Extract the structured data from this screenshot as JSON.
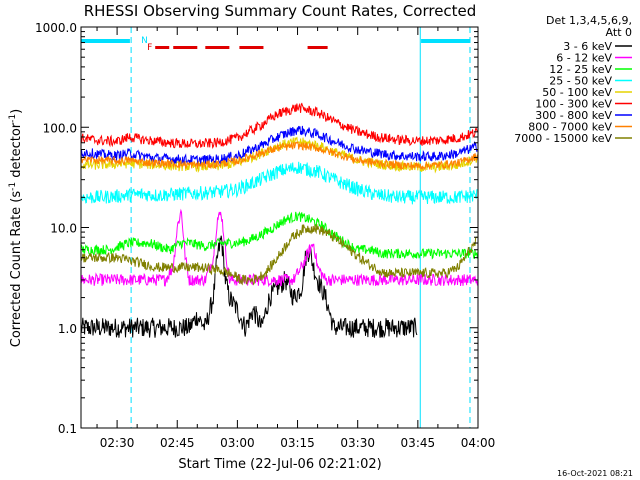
{
  "chart_data": {
    "type": "line",
    "title": "RHESSI Observing Summary Count Rates, Corrected",
    "xlabel": "Start Time (22-Jul-06 02:21:02)",
    "ylabel": "Corrected Count Rate (s",
    "ylabel_sup1": "-1",
    "ylabel_mid": " detector",
    "ylabel_sup2": "-1",
    "ylabel_end": ")",
    "yscale": "log",
    "ylim": [
      0.1,
      1000.0
    ],
    "xlim_min": [
      141,
      240
    ],
    "x_ticks": [
      {
        "min": 150,
        "label": "02:30"
      },
      {
        "min": 165,
        "label": "02:45"
      },
      {
        "min": 180,
        "label": "03:00"
      },
      {
        "min": 195,
        "label": "03:15"
      },
      {
        "min": 210,
        "label": "03:30"
      },
      {
        "min": 225,
        "label": "03:45"
      },
      {
        "min": 240,
        "label": "04:00"
      }
    ],
    "y_ticks": [
      {
        "v": 0.1,
        "label": "0.1"
      },
      {
        "v": 1.0,
        "label": "1.0"
      },
      {
        "v": 10.0,
        "label": "10.0"
      },
      {
        "v": 100.0,
        "label": "100.0"
      },
      {
        "v": 1000.0,
        "label": "1000.0"
      }
    ],
    "legend_header": [
      "Det 1,3,4,5,6,9,",
      "Att 0"
    ],
    "legend_placement": "right",
    "night_lines_min": [
      141.0,
      153.5,
      225.6,
      238.0
    ],
    "saa_bars_min": [
      [
        141.0,
        153.2
      ],
      [
        225.8,
        238.0
      ]
    ],
    "flag_labels": [
      {
        "text": "N",
        "min": 156.0,
        "color": "#00e0ff"
      },
      {
        "text": "F",
        "min": 157.5,
        "color": "#e00000"
      }
    ],
    "flare_segments_min": [
      [
        159.5,
        163.0
      ],
      [
        164.0,
        170.0
      ],
      [
        172.0,
        178.0
      ],
      [
        180.5,
        186.5
      ],
      [
        197.5,
        202.5
      ]
    ],
    "series": [
      {
        "name": "3 - 6 keV",
        "color": "#000000",
        "x": [
          141,
          148,
          151,
          152,
          153,
          156,
          158,
          160,
          163,
          166,
          168,
          170,
          172,
          174,
          175,
          176,
          177,
          178,
          180,
          182,
          184,
          186,
          188,
          190,
          192,
          194,
          196,
          197,
          198,
          199,
          200,
          202,
          204,
          206,
          208,
          210,
          212,
          214,
          216,
          218,
          220,
          222,
          224,
          225
        ],
        "y": [
          1.0,
          1.0,
          1.0,
          1.0,
          1.0,
          1.0,
          1.0,
          1.0,
          1.0,
          1.0,
          1.0,
          1.3,
          1.0,
          2.0,
          5.0,
          8.0,
          3.0,
          2.0,
          1.5,
          1.0,
          1.5,
          1.0,
          2.0,
          2.5,
          3.0,
          2.0,
          2.5,
          5.0,
          6.0,
          4.0,
          3.0,
          2.0,
          1.0,
          1.0,
          1.0,
          1.0,
          1.0,
          1.0,
          1.0,
          1.0,
          1.0,
          1.0,
          1.0,
          1.0
        ]
      },
      {
        "name": "6 - 12 keV",
        "color": "#ff00ff",
        "x": [
          141,
          145,
          150,
          153,
          156,
          159,
          162,
          164,
          165,
          166,
          167,
          168,
          170,
          172,
          174,
          175,
          176,
          177,
          178,
          180,
          182,
          184,
          186,
          188,
          190,
          192,
          194,
          196,
          198,
          199,
          200,
          202,
          204,
          206,
          208,
          210,
          212,
          214,
          216,
          218,
          220,
          222,
          224,
          226,
          228,
          230,
          232,
          234,
          236,
          238,
          240
        ],
        "y": [
          3.0,
          3.0,
          3.0,
          3.0,
          3.0,
          3.0,
          3.0,
          4.0,
          10.0,
          15.0,
          5.0,
          3.0,
          3.0,
          3.0,
          5.0,
          12.0,
          14.0,
          6.0,
          3.0,
          3.0,
          3.0,
          3.0,
          3.0,
          3.0,
          3.0,
          3.0,
          3.0,
          4.0,
          6.0,
          7.0,
          4.0,
          3.0,
          3.0,
          3.0,
          3.0,
          3.0,
          3.0,
          3.0,
          3.0,
          3.0,
          3.0,
          3.0,
          3.0,
          3.0,
          3.0,
          3.0,
          3.0,
          3.0,
          3.0,
          3.0,
          3.0
        ]
      },
      {
        "name": "12 - 25 keV",
        "color": "#00ff00",
        "x": [
          141,
          148,
          153,
          158,
          163,
          166,
          168,
          172,
          176,
          180,
          183,
          186,
          189,
          192,
          195,
          198,
          201,
          204,
          207,
          210,
          213,
          216,
          219,
          222,
          225,
          228,
          231,
          234,
          237,
          240
        ],
        "y": [
          6.0,
          6.0,
          7.0,
          7.0,
          6.0,
          7.0,
          7.0,
          6.5,
          7.0,
          7.0,
          7.5,
          8.5,
          10.0,
          12.0,
          13.0,
          12.0,
          10.5,
          8.5,
          7.0,
          6.0,
          6.0,
          5.5,
          5.5,
          5.5,
          5.5,
          5.5,
          5.5,
          5.5,
          5.5,
          5.5
        ]
      },
      {
        "name": "25 - 50 keV",
        "color": "#00ffff",
        "x": [
          141,
          145,
          150,
          153,
          156,
          160,
          165,
          170,
          175,
          180,
          185,
          190,
          195,
          200,
          205,
          210,
          215,
          220,
          225,
          230,
          235,
          240
        ],
        "y": [
          20.0,
          20.0,
          20.5,
          21.0,
          21.5,
          21.0,
          21.5,
          22.0,
          22.5,
          24.0,
          29.0,
          36.0,
          40.0,
          36.0,
          29.0,
          24.0,
          21.0,
          20.0,
          20.0,
          20.0,
          20.0,
          21.0
        ]
      },
      {
        "name": "50 - 100 keV",
        "color": "#e6d400",
        "x": [
          141,
          145,
          150,
          153,
          156,
          160,
          165,
          170,
          175,
          180,
          185,
          190,
          195,
          200,
          205,
          210,
          215,
          220,
          225,
          230,
          235,
          240
        ],
        "y": [
          42.0,
          42.0,
          43.0,
          43.5,
          43.0,
          42.0,
          41.0,
          40.5,
          41.0,
          44.0,
          53.0,
          65.0,
          72.0,
          66.0,
          55.0,
          47.0,
          43.0,
          41.0,
          40.0,
          40.0,
          42.0,
          50.0
        ]
      },
      {
        "name": "100 - 300 keV",
        "color": "#ff0000",
        "x": [
          141,
          145,
          150,
          153,
          156,
          160,
          165,
          170,
          175,
          180,
          185,
          190,
          195,
          200,
          205,
          210,
          215,
          220,
          225,
          230,
          235,
          240
        ],
        "y": [
          78.0,
          74.0,
          72.0,
          80.0,
          76.0,
          72.0,
          69.0,
          68.0,
          70.0,
          78.0,
          100.0,
          135.0,
          158.0,
          140.0,
          110.0,
          90.0,
          80.0,
          75.0,
          73.0,
          74.0,
          78.0,
          90.0
        ]
      },
      {
        "name": "300 - 800 keV",
        "color": "#0000ff",
        "x": [
          141,
          145,
          150,
          153,
          156,
          160,
          165,
          170,
          175,
          180,
          185,
          190,
          195,
          200,
          205,
          210,
          215,
          220,
          225,
          230,
          235,
          240
        ],
        "y": [
          57.0,
          54.0,
          52.0,
          55.0,
          52.0,
          49.0,
          48.0,
          47.0,
          48.0,
          52.0,
          63.0,
          80.0,
          95.0,
          85.0,
          70.0,
          60.0,
          55.0,
          52.0,
          51.0,
          51.0,
          55.0,
          65.0
        ]
      },
      {
        "name": "800 - 7000 keV",
        "color": "#ff8000",
        "x": [
          141,
          145,
          150,
          153,
          156,
          160,
          165,
          170,
          175,
          180,
          185,
          190,
          195,
          200,
          205,
          210,
          215,
          220,
          225,
          230,
          235,
          240
        ],
        "y": [
          48.0,
          47.0,
          46.0,
          47.0,
          45.0,
          44.0,
          43.0,
          42.0,
          43.0,
          46.0,
          54.0,
          62.0,
          66.0,
          62.0,
          54.0,
          47.0,
          44.0,
          42.0,
          41.0,
          42.0,
          44.0,
          52.0
        ]
      },
      {
        "name": "7000 - 15000 keV",
        "color": "#808000",
        "x": [
          141,
          150,
          155,
          160,
          165,
          170,
          175,
          178,
          181,
          184,
          187,
          190,
          193,
          196,
          199,
          202,
          205,
          208,
          211,
          214,
          217,
          220,
          223,
          226,
          229,
          232,
          235,
          238,
          240
        ],
        "y": [
          5.0,
          5.0,
          4.5,
          4.0,
          4.0,
          4.0,
          3.8,
          3.5,
          3.0,
          3.0,
          3.5,
          5.0,
          7.5,
          9.5,
          10.0,
          9.0,
          7.5,
          6.0,
          4.8,
          4.0,
          3.5,
          3.5,
          3.5,
          3.5,
          3.5,
          3.5,
          4.0,
          6.0,
          7.5
        ]
      }
    ]
  },
  "footer": {
    "timestamp": "16-Oct-2021 08:21"
  }
}
